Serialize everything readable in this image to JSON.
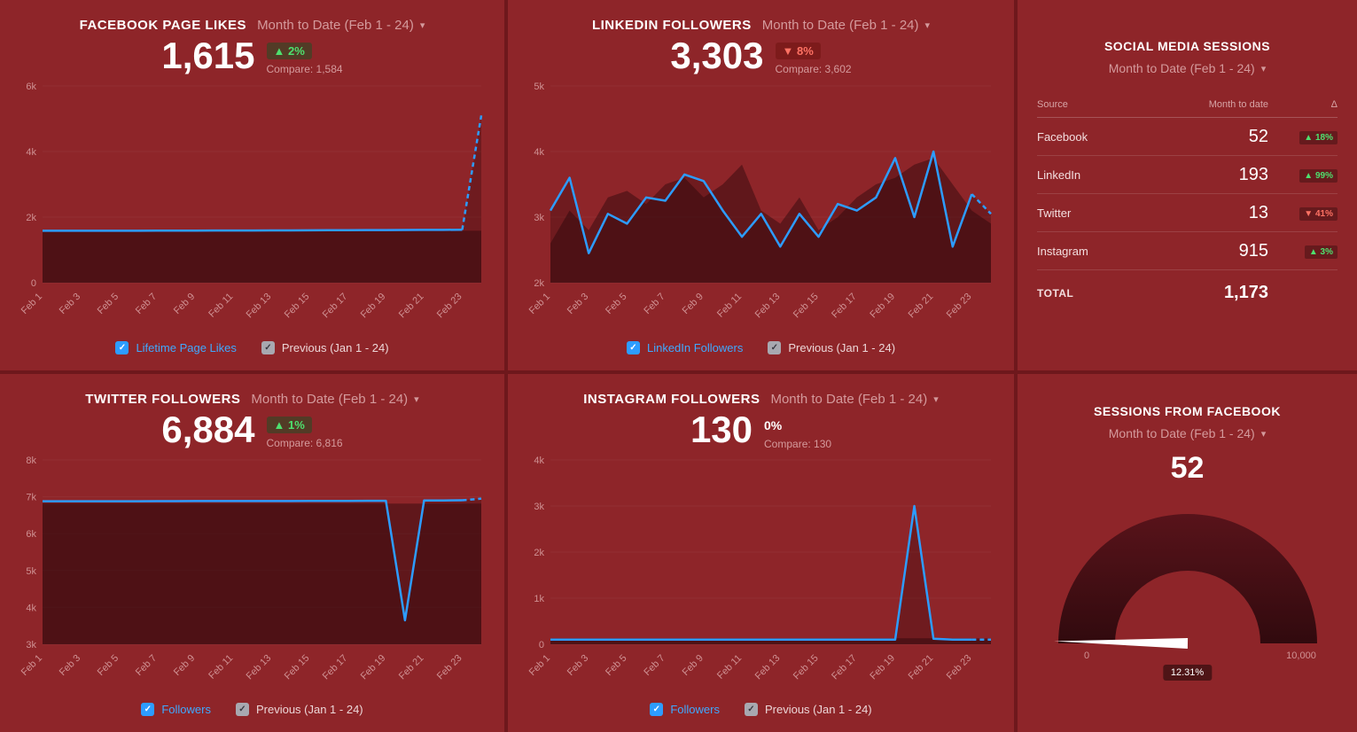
{
  "theme": {
    "accent_blue": "#2d9cff",
    "up_green": "#4ee06e",
    "down_red": "#ff7264",
    "panel_bg": "#8e2529"
  },
  "panels": {
    "facebook": {
      "title": "FACEBOOK PAGE LIKES",
      "range": "Month to Date (Feb 1 - 24)",
      "value": "1,615",
      "delta": "▲ 2%",
      "delta_dir": "up",
      "compare": "Compare: 1,584",
      "legend_series": "Lifetime Page Likes",
      "legend_previous": "Previous (Jan 1 - 24)"
    },
    "linkedin": {
      "title": "LINKEDIN FOLLOWERS",
      "range": "Month to Date (Feb 1 - 24)",
      "value": "3,303",
      "delta": "▼ 8%",
      "delta_dir": "down",
      "compare": "Compare: 3,602",
      "legend_series": "LinkedIn Followers",
      "legend_previous": "Previous (Jan 1 - 24)"
    },
    "sessions": {
      "title": "SOCIAL MEDIA SESSIONS",
      "range": "Month to Date (Feb 1 - 24)",
      "col_source": "Source",
      "col_value": "Month to date",
      "col_delta": "Δ",
      "rows": [
        {
          "source": "Facebook",
          "value": "52",
          "delta": "▲ 18%",
          "dir": "up"
        },
        {
          "source": "LinkedIn",
          "value": "193",
          "delta": "▲ 99%",
          "dir": "up"
        },
        {
          "source": "Twitter",
          "value": "13",
          "delta": "▼ 41%",
          "dir": "down"
        },
        {
          "source": "Instagram",
          "value": "915",
          "delta": "▲ 3%",
          "dir": "up"
        }
      ],
      "total_label": "TOTAL",
      "total_value": "1,173"
    },
    "twitter": {
      "title": "TWITTER FOLLOWERS",
      "range": "Month to Date (Feb 1 - 24)",
      "value": "6,884",
      "delta": "▲ 1%",
      "delta_dir": "up",
      "compare": "Compare: 6,816",
      "legend_series": "Followers",
      "legend_previous": "Previous (Jan 1 - 24)"
    },
    "instagram": {
      "title": "INSTAGRAM FOLLOWERS",
      "range": "Month to Date (Feb 1 - 24)",
      "value": "130",
      "delta": "0%",
      "delta_dir": "flat",
      "compare": "Compare: 130",
      "legend_series": "Followers",
      "legend_previous": "Previous (Jan 1 - 24)"
    },
    "facebook_sessions": {
      "title": "SESSIONS FROM FACEBOOK",
      "range": "Month to Date (Feb 1 - 24)",
      "value": "52"
    }
  },
  "chart_data": [
    {
      "type": "line",
      "title": "Facebook Page Likes",
      "points": 24,
      "x_ticks": [
        "Feb 1",
        "Feb 3",
        "Feb 5",
        "Feb 7",
        "Feb 9",
        "Feb 11",
        "Feb 13",
        "Feb 15",
        "Feb 17",
        "Feb 19",
        "Feb 21",
        "Feb 23"
      ],
      "ylim": [
        0,
        6000
      ],
      "y_ticks": [
        "0",
        "2k",
        "4k",
        "6k"
      ],
      "series": [
        {
          "name": "Previous (Jan 1 - 24)",
          "role": "previous",
          "values": [
            1584,
            1584,
            1584,
            1584,
            1584,
            1584,
            1584,
            1584,
            1584,
            1584,
            1584,
            1584,
            1584,
            1584,
            1584,
            1584,
            1584,
            1584,
            1584,
            1584,
            1584,
            1584,
            1584,
            1584
          ]
        },
        {
          "name": "Lifetime Page Likes",
          "role": "current",
          "dash_from": 22,
          "values": [
            1584,
            1584,
            1584,
            1585,
            1585,
            1586,
            1587,
            1588,
            1589,
            1590,
            1591,
            1592,
            1594,
            1596,
            1598,
            1600,
            1602,
            1604,
            1606,
            1608,
            1610,
            1612,
            1615,
            5100
          ]
        }
      ]
    },
    {
      "type": "line",
      "title": "LinkedIn Followers",
      "points": 24,
      "x_ticks": [
        "Feb 1",
        "Feb 3",
        "Feb 5",
        "Feb 7",
        "Feb 9",
        "Feb 11",
        "Feb 13",
        "Feb 15",
        "Feb 17",
        "Feb 19",
        "Feb 21",
        "Feb 23"
      ],
      "ylim": [
        2000,
        5000
      ],
      "y_ticks": [
        "2k",
        "3k",
        "4k",
        "5k"
      ],
      "series": [
        {
          "name": "Previous (Jan 1 - 24)",
          "role": "previous",
          "values": [
            2600,
            3100,
            2800,
            3300,
            3400,
            3200,
            3500,
            3600,
            3300,
            3500,
            3800,
            3100,
            2900,
            3300,
            2800,
            3000,
            3300,
            3500,
            3600,
            3800,
            3900,
            3500,
            3100,
            2900
          ]
        },
        {
          "name": "LinkedIn Followers",
          "role": "current",
          "dash_from": 22,
          "values": [
            3100,
            3600,
            2450,
            3050,
            2900,
            3300,
            3250,
            3650,
            3550,
            3100,
            2700,
            3050,
            2550,
            3050,
            2700,
            3200,
            3100,
            3300,
            3900,
            3000,
            4000,
            2550,
            3350,
            3050
          ]
        }
      ]
    },
    {
      "type": "line",
      "title": "Twitter Followers",
      "points": 24,
      "x_ticks": [
        "Feb 1",
        "Feb 3",
        "Feb 5",
        "Feb 7",
        "Feb 9",
        "Feb 11",
        "Feb 13",
        "Feb 15",
        "Feb 17",
        "Feb 19",
        "Feb 21",
        "Feb 23"
      ],
      "ylim": [
        3000,
        8000
      ],
      "y_ticks": [
        "3k",
        "4k",
        "5k",
        "6k",
        "7k",
        "8k"
      ],
      "series": [
        {
          "name": "Previous (Jan 1 - 24)",
          "role": "previous",
          "values": [
            6816,
            6816,
            6816,
            6816,
            6816,
            6816,
            6816,
            6816,
            6816,
            6816,
            6816,
            6816,
            6816,
            6816,
            6816,
            6816,
            6816,
            6816,
            6816,
            6816,
            6816,
            6816,
            6816,
            6816
          ]
        },
        {
          "name": "Followers",
          "role": "current",
          "dash_from": 22,
          "values": [
            6880,
            6880,
            6880,
            6880,
            6880,
            6880,
            6882,
            6882,
            6884,
            6884,
            6884,
            6886,
            6886,
            6886,
            6888,
            6888,
            6888,
            6890,
            6890,
            3650,
            6900,
            6900,
            6905,
            6950
          ]
        }
      ]
    },
    {
      "type": "line",
      "title": "Instagram Followers",
      "points": 24,
      "x_ticks": [
        "Feb 1",
        "Feb 3",
        "Feb 5",
        "Feb 7",
        "Feb 9",
        "Feb 11",
        "Feb 13",
        "Feb 15",
        "Feb 17",
        "Feb 19",
        "Feb 21",
        "Feb 23"
      ],
      "ylim": [
        0,
        4000
      ],
      "y_ticks": [
        "0",
        "1k",
        "2k",
        "3k",
        "4k"
      ],
      "series": [
        {
          "name": "Previous (Jan 1 - 24)",
          "role": "previous",
          "values": [
            130,
            130,
            130,
            130,
            130,
            130,
            130,
            130,
            130,
            130,
            130,
            130,
            130,
            130,
            130,
            130,
            130,
            130,
            130,
            130,
            130,
            130,
            130,
            130
          ]
        },
        {
          "name": "Followers",
          "role": "current",
          "dash_from": 22,
          "values": [
            100,
            100,
            100,
            100,
            100,
            100,
            100,
            100,
            100,
            100,
            100,
            100,
            100,
            100,
            100,
            100,
            100,
            100,
            100,
            3000,
            120,
            100,
            100,
            100
          ]
        }
      ]
    },
    {
      "type": "gauge",
      "title": "Sessions from Facebook",
      "value": 52,
      "min": 0,
      "max": 10000,
      "min_label": "0",
      "max_label": "10,000",
      "percent_label": "12.31%"
    }
  ]
}
